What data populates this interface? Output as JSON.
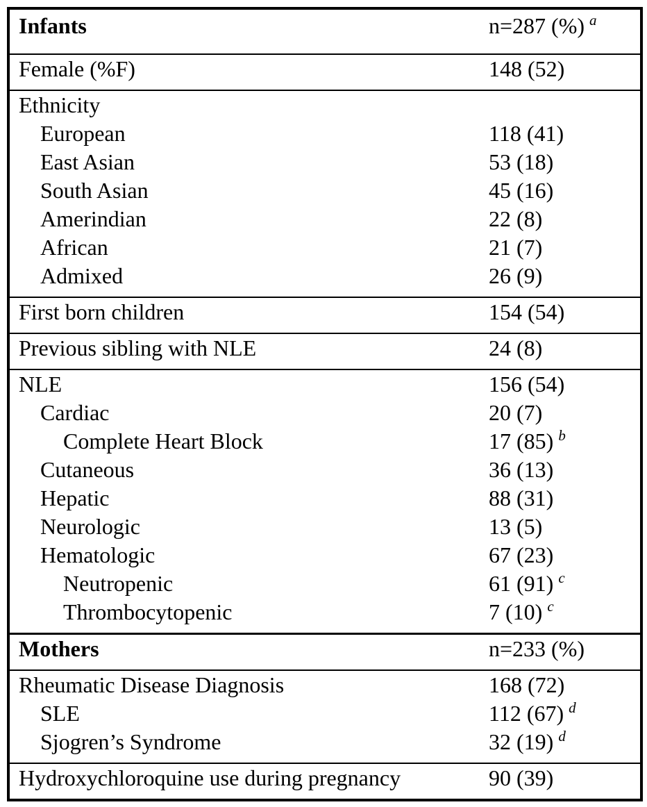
{
  "colors": {
    "text": "#000000",
    "border": "#000000",
    "background": "#ffffff"
  },
  "table": {
    "sections": [
      {
        "name": "infants-header",
        "rows": [
          {
            "label": "Infants",
            "value": "n=287 (%)",
            "sup": "a",
            "bold": true,
            "indent": 0
          }
        ]
      },
      {
        "name": "female",
        "rows": [
          {
            "label": "Female (%F)",
            "value": "148 (52)",
            "indent": 0
          }
        ]
      },
      {
        "name": "ethnicity",
        "rows": [
          {
            "label": "Ethnicity",
            "value": "",
            "indent": 0
          },
          {
            "label": "European",
            "value": "118 (41)",
            "indent": 1
          },
          {
            "label": "East Asian",
            "value": "53 (18)",
            "indent": 1
          },
          {
            "label": "South Asian",
            "value": "45 (16)",
            "indent": 1
          },
          {
            "label": "Amerindian",
            "value": "22 (8)",
            "indent": 1
          },
          {
            "label": "African",
            "value": "21 (7)",
            "indent": 1
          },
          {
            "label": "Admixed",
            "value": "26 (9)",
            "indent": 1
          }
        ]
      },
      {
        "name": "first-born",
        "rows": [
          {
            "label": "First born children",
            "value": "154 (54)",
            "indent": 0
          }
        ]
      },
      {
        "name": "previous-sibling",
        "rows": [
          {
            "label": "Previous sibling with NLE",
            "value": "24 (8)",
            "indent": 0
          }
        ]
      },
      {
        "name": "nle",
        "rows": [
          {
            "label": "NLE",
            "value": "156 (54)",
            "indent": 0
          },
          {
            "label": "Cardiac",
            "value": "20 (7)",
            "indent": 1
          },
          {
            "label": "Complete Heart Block",
            "value": "17 (85)",
            "sup": "b",
            "indent": 2
          },
          {
            "label": "Cutaneous",
            "value": "36 (13)",
            "indent": 1
          },
          {
            "label": "Hepatic",
            "value": "88 (31)",
            "indent": 1
          },
          {
            "label": "Neurologic",
            "value": "13 (5)",
            "indent": 1
          },
          {
            "label": "Hematologic",
            "value": "67 (23)",
            "indent": 1
          },
          {
            "label": "Neutropenic",
            "value": "61 (91)",
            "sup": "c",
            "indent": 2
          },
          {
            "label": "Thrombocytopenic",
            "value": "7 (10)",
            "sup": "c",
            "indent": 2
          }
        ]
      },
      {
        "name": "mothers-header",
        "thick_top": true,
        "rows": [
          {
            "label": "Mothers",
            "value": "n=233 (%)",
            "bold": true,
            "indent": 0
          }
        ]
      },
      {
        "name": "rheumatic-disease",
        "rows": [
          {
            "label": "Rheumatic Disease Diagnosis",
            "value": "168 (72)",
            "indent": 0
          },
          {
            "label": "SLE",
            "value": "112 (67)",
            "sup": "d",
            "indent": 1
          },
          {
            "label": "Sjogren’s Syndrome",
            "value": "32 (19)",
            "sup": "d",
            "indent": 1
          }
        ]
      },
      {
        "name": "hydroxychloroquine",
        "rows": [
          {
            "label": "Hydroxychloroquine use during pregnancy",
            "value": "90 (39)",
            "indent": 0
          }
        ]
      }
    ]
  }
}
